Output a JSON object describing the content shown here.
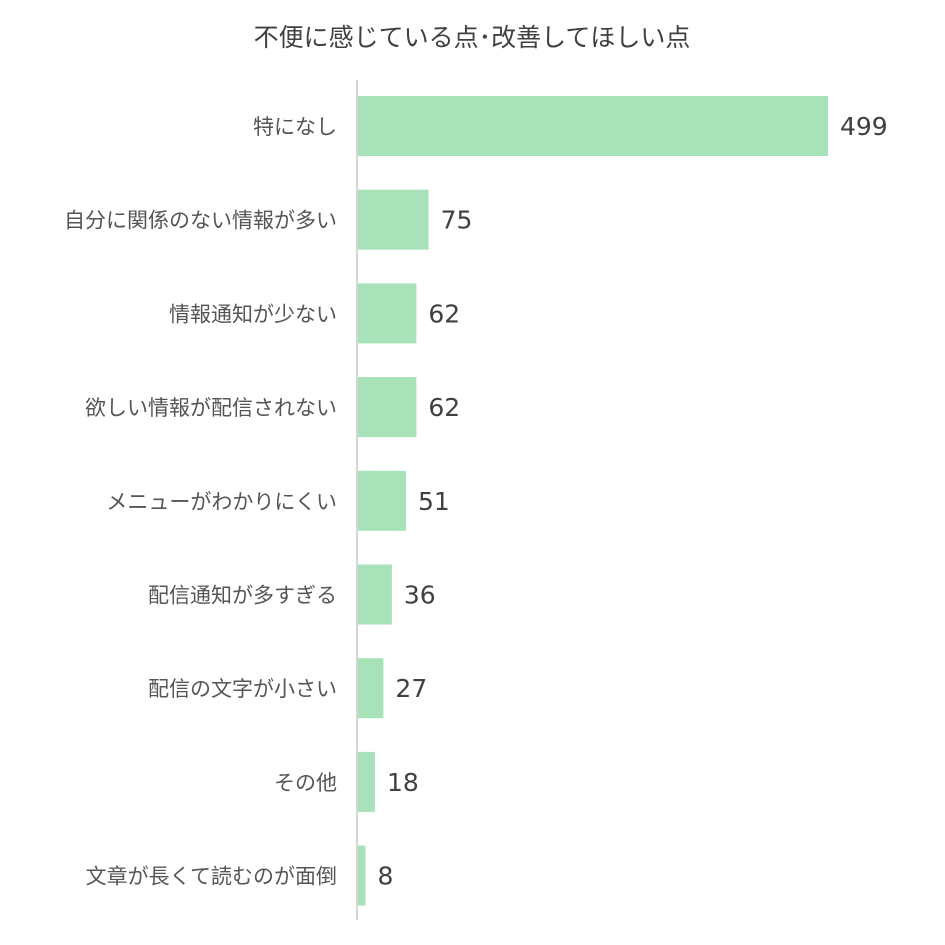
{
  "chart_data": {
    "type": "bar",
    "orientation": "horizontal",
    "title": "不便に感じている点･改善してほしい点",
    "categories": [
      "特になし",
      "自分に関係のない情報が多い",
      "情報通知が少ない",
      "欲しい情報が配信されない",
      "メニューがわかりにくい",
      "配信通知が多すぎる",
      "配信の文字が小さい",
      "その他",
      "文章が長くて読むのが面倒"
    ],
    "values": [
      499,
      75,
      62,
      62,
      51,
      36,
      27,
      18,
      8
    ],
    "xlim": [
      0,
      499
    ],
    "grid": false,
    "legend": "none",
    "bar_color": "#a8e2b8",
    "axis_color": "#c8c8c8"
  }
}
